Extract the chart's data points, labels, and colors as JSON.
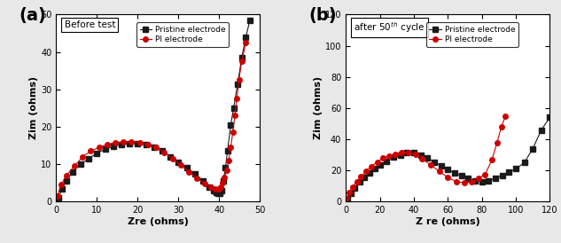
{
  "panel_a": {
    "title": "Before test",
    "label": "(a)",
    "xlabel": "Zre (ohms)",
    "ylabel": "Zim (ohms)",
    "xlim": [
      0,
      50
    ],
    "ylim": [
      0,
      50
    ],
    "xticks": [
      0,
      10,
      20,
      30,
      40,
      50
    ],
    "yticks": [
      0,
      10,
      20,
      30,
      40,
      50
    ],
    "pristine": {
      "zre": [
        0.5,
        1.5,
        2.5,
        4.0,
        6.0,
        8.0,
        10.0,
        12.0,
        14.0,
        16.0,
        18.0,
        20.0,
        22.0,
        24.0,
        26.0,
        28.0,
        30.0,
        32.0,
        34.0,
        36.0,
        37.5,
        38.5,
        39.2,
        39.7,
        40.1,
        40.5,
        41.0,
        41.5,
        42.0,
        42.8,
        43.5,
        44.5,
        45.5,
        46.5,
        47.5
      ],
      "zim": [
        1.0,
        3.5,
        5.5,
        8.0,
        10.0,
        11.5,
        13.0,
        14.0,
        14.8,
        15.2,
        15.5,
        15.5,
        15.2,
        14.5,
        13.5,
        12.0,
        10.5,
        9.0,
        7.5,
        5.5,
        4.0,
        3.0,
        2.5,
        2.2,
        2.2,
        3.0,
        5.5,
        9.0,
        13.5,
        20.5,
        25.0,
        31.5,
        38.5,
        44.0,
        48.5
      ],
      "color": "#1a1a1a",
      "marker": "s",
      "markersize": 4,
      "linewidth": 0.8,
      "label": "Pristine electrode"
    },
    "pi": {
      "zre": [
        0.3,
        1.2,
        2.5,
        4.5,
        6.5,
        8.5,
        10.5,
        12.5,
        14.5,
        16.5,
        18.5,
        20.5,
        22.5,
        24.5,
        26.5,
        28.5,
        30.5,
        32.5,
        34.5,
        36.5,
        38.0,
        39.0,
        39.8,
        40.3,
        40.8,
        41.3,
        41.8,
        42.3,
        42.8,
        43.3,
        43.8,
        44.3,
        44.8,
        45.5,
        46.5
      ],
      "zim": [
        1.5,
        4.5,
        7.0,
        9.5,
        12.0,
        13.5,
        14.5,
        15.3,
        15.8,
        16.0,
        16.0,
        15.8,
        15.3,
        14.5,
        13.2,
        11.5,
        9.8,
        8.0,
        6.3,
        4.8,
        3.8,
        3.3,
        3.3,
        3.8,
        5.0,
        6.5,
        8.5,
        11.0,
        14.5,
        18.5,
        23.0,
        27.5,
        32.5,
        37.5,
        42.5
      ],
      "color": "#cc0000",
      "marker": "o",
      "markersize": 4,
      "linewidth": 0.8,
      "label": "PI electrode"
    }
  },
  "panel_b": {
    "title": "after 50$^{th}$ cycle",
    "label": "(b)",
    "xlabel": "Z re (ohms)",
    "ylabel": "Zim (ohms)",
    "xlim": [
      0,
      120
    ],
    "ylim": [
      0,
      120
    ],
    "xticks": [
      0,
      20,
      40,
      60,
      80,
      100,
      120
    ],
    "yticks": [
      0,
      20,
      40,
      60,
      80,
      100,
      120
    ],
    "pristine": {
      "zre": [
        1.0,
        3.0,
        5.0,
        8.0,
        11.0,
        14.0,
        17.0,
        20.0,
        24.0,
        28.0,
        32.0,
        36.0,
        40.0,
        44.0,
        48.0,
        52.0,
        56.0,
        60.0,
        64.0,
        68.0,
        72.0,
        76.0,
        80.0,
        84.0,
        88.0,
        92.0,
        96.0,
        100.0,
        105.0,
        110.0,
        115.0,
        120.0
      ],
      "zim": [
        2.0,
        5.5,
        9.0,
        12.5,
        15.5,
        18.5,
        21.0,
        23.5,
        26.0,
        28.5,
        30.0,
        31.5,
        31.5,
        30.0,
        28.0,
        25.5,
        23.0,
        20.5,
        18.5,
        16.5,
        15.0,
        13.5,
        13.0,
        13.5,
        15.0,
        17.0,
        19.0,
        21.0,
        25.0,
        34.0,
        46.0,
        54.0
      ],
      "color": "#1a1a1a",
      "marker": "s",
      "markersize": 4,
      "linewidth": 0.8,
      "label": "Pristine electrode"
    },
    "pi": {
      "zre": [
        0.5,
        2.0,
        4.0,
        6.5,
        9.0,
        12.0,
        15.0,
        18.5,
        22.0,
        25.5,
        29.0,
        33.0,
        37.0,
        41.0,
        45.0,
        50.0,
        55.0,
        60.0,
        65.0,
        70.0,
        74.0,
        78.0,
        82.0,
        86.0,
        89.0,
        91.5,
        94.0
      ],
      "zim": [
        2.0,
        6.0,
        9.5,
        13.0,
        16.0,
        19.5,
        22.5,
        25.5,
        28.0,
        29.5,
        30.5,
        31.5,
        31.5,
        30.5,
        27.5,
        23.5,
        19.5,
        15.5,
        13.0,
        12.0,
        13.0,
        15.0,
        17.5,
        27.0,
        38.0,
        48.0,
        55.0
      ],
      "color": "#cc0000",
      "marker": "o",
      "markersize": 4,
      "linewidth": 0.8,
      "label": "PI electrode"
    }
  },
  "fig_bg": "#e8e8e8",
  "axes_bg": "#ffffff"
}
